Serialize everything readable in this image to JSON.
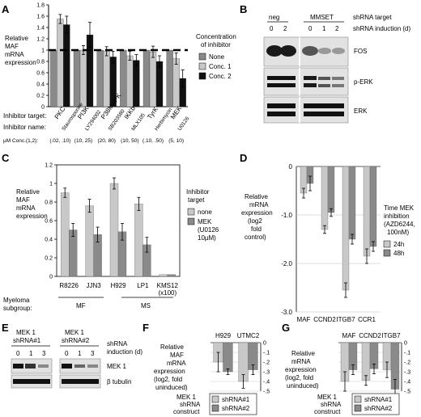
{
  "panels": {
    "A": {
      "letter": "A",
      "ylabel": [
        "Relative",
        "MAF",
        "mRNA",
        "expression"
      ],
      "legend_title": [
        "Concentration",
        "of inhibitor"
      ],
      "legend": [
        "None",
        "Conc. 1",
        "Conc. 2"
      ],
      "target_row_label": "Inhibitor target:",
      "name_row_label": "Inhibitor name:",
      "conc_row_label": "µM Conc.(1,2):",
      "targets": [
        "PKC",
        "PI3K",
        "P38MAPK",
        "IKKb",
        "TyrK",
        "MEK"
      ],
      "names": [
        "Staurosporine",
        "LY294002",
        "SB203580",
        "MLX105",
        "Herbimycin",
        "U0126"
      ],
      "concs": [
        "(.02, .10)",
        "(10, 25)",
        "(20, 80)",
        "(10, 50)",
        "(.10, .50)",
        "(5, 10)"
      ]
    },
    "B": {
      "letter": "B",
      "group_neg": "neg",
      "group_mmset": "MMSET",
      "neg_lanes": [
        "0",
        "2"
      ],
      "mmset_lanes": [
        "0",
        "1",
        "2"
      ],
      "header_target": "shRNA target",
      "header_induction": "shRNA induction (d)",
      "blots": [
        "FOS",
        "p-ERK",
        "ERK"
      ]
    },
    "C": {
      "letter": "C",
      "ylabel": [
        "Relative",
        "MAF",
        "mRNA",
        "expression"
      ],
      "legend_title": [
        "Inhibitor",
        "target"
      ],
      "legend": [
        "none",
        "MEK",
        "(U0126",
        "10µM)"
      ],
      "cell_lines": [
        "R8226",
        "JJN3",
        "H929",
        "LP1",
        "KMS12"
      ],
      "kms_note": "(x100)",
      "subgroup_label": [
        "Myeloma",
        "subgroup:"
      ],
      "subgroups": [
        "MF",
        "MS"
      ]
    },
    "D": {
      "letter": "D",
      "ylabel": [
        "Relative",
        "mRNA",
        "expression",
        "(log2",
        "fold",
        "control)"
      ],
      "legend_title": [
        "Time MEK",
        "inhibition",
        "(AZD6244,",
        "100nM)"
      ],
      "legend": [
        "24h",
        "48h"
      ],
      "genes": [
        "MAF",
        "CCND2",
        "ITGB7",
        "CCR1"
      ]
    },
    "E": {
      "letter": "E",
      "group1": [
        "MEK 1",
        "shRNA#1"
      ],
      "group2": [
        "MEK 1",
        "shRNA#2"
      ],
      "lanes1": [
        "0",
        "1",
        "3"
      ],
      "lanes2": [
        "0",
        "1",
        "3"
      ],
      "header": [
        "shRNA",
        "induction (d)"
      ],
      "blots": [
        "MEK 1",
        "β tubulin"
      ]
    },
    "F": {
      "letter": "F",
      "ylabel": [
        "Relative",
        "MAF",
        "mRNA",
        "expression",
        "(log2, fold",
        "uninduced)"
      ],
      "groups": [
        "H929",
        "UTMC2"
      ],
      "construct_label": [
        "MEK 1",
        "shRNA",
        "construct"
      ],
      "legend": [
        "shRNA#1",
        "shRNA#2"
      ]
    },
    "G": {
      "letter": "G",
      "ylabel": [
        "Relative",
        "mRNA",
        "expression",
        "(log2, fold",
        "uninduced)"
      ],
      "groups": [
        "MAF",
        "CCND2",
        "ITGB7"
      ],
      "construct_label": [
        "MEK 1",
        "shRNA",
        "construct"
      ],
      "legend": [
        "shRNA#1",
        "shRNA#2"
      ]
    }
  },
  "colors": {
    "light": "#c8c8c8",
    "mid": "#8a8a8a",
    "dark": "#111111",
    "axis": "#000000"
  },
  "chart_data": [
    {
      "panel": "A",
      "type": "bar",
      "categories": [
        "PKC",
        "PI3K",
        "P38MAPK",
        "IKKb",
        "TyrK",
        "MEK"
      ],
      "ylim": [
        0,
        1.8
      ],
      "yticks": [
        "0",
        "0.2",
        "0.4",
        "0.6",
        "0.8",
        "1",
        "1.2",
        "1.4",
        "1.6",
        "1.8"
      ],
      "reference_line": 1,
      "series": [
        {
          "name": "None",
          "values": [
            1,
            1,
            1,
            1,
            1,
            1
          ],
          "errors": [
            0,
            0,
            0,
            0,
            0,
            0
          ]
        },
        {
          "name": "Conc. 1",
          "values": [
            1.55,
            1.0,
            0.98,
            0.9,
            0.97,
            0.85
          ],
          "errors": [
            0.08,
            0.08,
            0.08,
            0.08,
            0.1,
            0.1
          ]
        },
        {
          "name": "Conc. 2",
          "values": [
            1.45,
            1.27,
            0.88,
            0.82,
            0.8,
            0.5
          ],
          "errors": [
            0.15,
            0.22,
            0.1,
            0.1,
            0.1,
            0.15
          ]
        }
      ]
    },
    {
      "panel": "C",
      "type": "bar",
      "categories": [
        "R8226",
        "JJN3",
        "H929",
        "LP1",
        "KMS12"
      ],
      "ylim": [
        0,
        1.2
      ],
      "yticks": [
        "0",
        "0.2",
        "0.4",
        "0.6",
        "0.8",
        "1",
        "1.2"
      ],
      "series": [
        {
          "name": "none",
          "values": [
            0.9,
            0.76,
            1.0,
            0.78,
            0.02
          ],
          "errors": [
            0.05,
            0.07,
            0.06,
            0.07,
            0
          ]
        },
        {
          "name": "MEK",
          "values": [
            0.5,
            0.45,
            0.48,
            0.34,
            0.02
          ],
          "errors": [
            0.07,
            0.08,
            0.09,
            0.08,
            0
          ]
        }
      ]
    },
    {
      "panel": "D",
      "type": "bar",
      "categories": [
        "MAF",
        "CCND2",
        "ITGB7",
        "CCR1"
      ],
      "ylim": [
        -3.0,
        0
      ],
      "yticks": [
        "-3.0",
        "-2.0",
        "-1.0",
        "0"
      ],
      "series": [
        {
          "name": "24h",
          "values": [
            -0.55,
            -1.3,
            -2.55,
            -1.85
          ],
          "errors": [
            0.1,
            0.08,
            0.15,
            0.15
          ]
        },
        {
          "name": "48h",
          "values": [
            -0.35,
            -0.95,
            -1.5,
            -1.65
          ],
          "errors": [
            0.15,
            0.08,
            0.1,
            0.1
          ]
        }
      ]
    },
    {
      "panel": "F",
      "type": "bar",
      "categories": [
        "H929",
        "UTMC2"
      ],
      "ylim": [
        -0.5,
        0
      ],
      "yticks": [
        "-.5",
        "-.4",
        "-.3",
        "-.2",
        "-.1",
        "0"
      ],
      "series": [
        {
          "name": "shRNA#1",
          "values": [
            -0.2,
            -0.4
          ],
          "errors": [
            0.1,
            0.07
          ]
        },
        {
          "name": "shRNA#2",
          "values": [
            -0.3,
            -0.28
          ],
          "errors": [
            0.03,
            0.05
          ]
        }
      ]
    },
    {
      "panel": "G",
      "type": "bar",
      "categories": [
        "MAF",
        "CCND2",
        "ITGB7"
      ],
      "ylim": [
        -0.5,
        0
      ],
      "yticks": [
        "-.5",
        "-.4",
        "-.3",
        "-.2",
        "-.1",
        "0"
      ],
      "series": [
        {
          "name": "shRNA#1",
          "values": [
            -0.4,
            -0.39,
            -0.28
          ],
          "errors": [
            0.1,
            0.05,
            0.08
          ]
        },
        {
          "name": "shRNA#2",
          "values": [
            -0.28,
            -0.27,
            -0.48
          ],
          "errors": [
            0.05,
            0.05,
            0.1
          ]
        }
      ]
    }
  ]
}
